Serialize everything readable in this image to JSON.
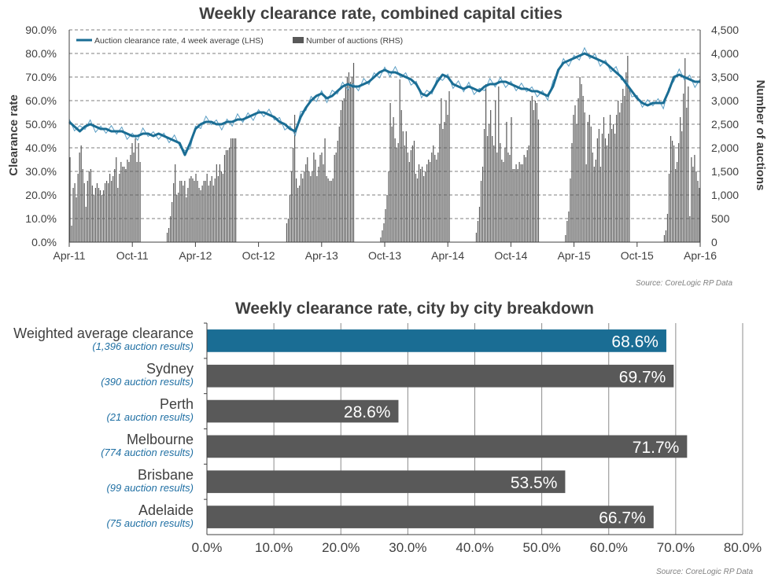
{
  "source_text": "Source: CoreLogic  RP Data",
  "chart_data": [
    {
      "type": "bar+line",
      "title": "Weekly clearance rate, combined capital cities",
      "ylabel": "Clearance rate",
      "ylabel_right": "Number of auctions",
      "x_ticks": [
        "Apr-11",
        "Oct-11",
        "Apr-12",
        "Oct-12",
        "Apr-13",
        "Oct-13",
        "Apr-14",
        "Oct-14",
        "Apr-15",
        "Oct-15",
        "Apr-16"
      ],
      "y_ticks": [
        "0.0%",
        "10.0%",
        "20.0%",
        "30.0%",
        "40.0%",
        "50.0%",
        "60.0%",
        "70.0%",
        "80.0%",
        "90.0%"
      ],
      "y2_ticks": [
        "0",
        "500",
        "1,000",
        "1,500",
        "2,000",
        "2,500",
        "3,000",
        "3,500",
        "4,000",
        "4,500"
      ],
      "ylim": [
        0,
        90
      ],
      "y2lim": [
        0,
        4500
      ],
      "legend": {
        "position": "top-left",
        "line_label": "Auction clearance rate, 4 week average (LHS)",
        "bar_label": "Number of auctions (RHS)"
      },
      "grid": "horizontal dashed",
      "colors": {
        "line": "#1a6d94",
        "line_thin": "#5b9ec4",
        "bars": "#595959"
      },
      "line_points": [
        [
          0,
          51
        ],
        [
          3,
          49
        ],
        [
          6,
          47
        ],
        [
          9,
          49
        ],
        [
          12,
          50
        ],
        [
          15,
          49
        ],
        [
          18,
          48
        ],
        [
          21,
          48
        ],
        [
          24,
          47
        ],
        [
          27,
          47
        ],
        [
          30,
          47
        ],
        [
          33,
          46
        ],
        [
          36,
          45
        ],
        [
          39,
          45
        ],
        [
          42,
          46
        ],
        [
          45,
          46
        ],
        [
          48,
          45
        ],
        [
          51,
          46
        ],
        [
          54,
          45
        ],
        [
          57,
          44
        ],
        [
          60,
          43
        ],
        [
          63,
          42
        ],
        [
          66,
          37
        ],
        [
          69,
          42
        ],
        [
          72,
          48
        ],
        [
          75,
          50
        ],
        [
          78,
          51
        ],
        [
          81,
          51
        ],
        [
          84,
          50
        ],
        [
          87,
          50
        ],
        [
          90,
          51
        ],
        [
          93,
          51
        ],
        [
          96,
          52
        ],
        [
          99,
          52
        ],
        [
          102,
          53
        ],
        [
          105,
          54
        ],
        [
          108,
          55
        ],
        [
          111,
          55
        ],
        [
          114,
          54
        ],
        [
          117,
          53
        ],
        [
          120,
          51
        ],
        [
          123,
          50
        ],
        [
          126,
          48
        ],
        [
          129,
          47
        ],
        [
          132,
          53
        ],
        [
          135,
          57
        ],
        [
          138,
          60
        ],
        [
          141,
          62
        ],
        [
          144,
          63
        ],
        [
          147,
          61
        ],
        [
          150,
          62
        ],
        [
          153,
          64
        ],
        [
          156,
          66
        ],
        [
          159,
          67
        ],
        [
          162,
          66
        ],
        [
          165,
          66
        ],
        [
          168,
          67
        ],
        [
          171,
          68
        ],
        [
          174,
          70
        ],
        [
          177,
          72
        ],
        [
          180,
          73
        ],
        [
          183,
          72
        ],
        [
          186,
          72
        ],
        [
          189,
          71
        ],
        [
          192,
          70
        ],
        [
          195,
          69
        ],
        [
          198,
          67
        ],
        [
          201,
          63
        ],
        [
          204,
          62
        ],
        [
          207,
          64
        ],
        [
          210,
          68
        ],
        [
          213,
          71
        ],
        [
          216,
          70
        ],
        [
          219,
          67
        ],
        [
          222,
          66
        ],
        [
          225,
          65
        ],
        [
          228,
          66
        ],
        [
          231,
          65
        ],
        [
          234,
          64
        ],
        [
          237,
          66
        ],
        [
          240,
          67
        ],
        [
          243,
          67
        ],
        [
          246,
          68
        ],
        [
          249,
          68
        ],
        [
          252,
          67
        ],
        [
          255,
          66
        ],
        [
          258,
          65
        ],
        [
          261,
          65
        ],
        [
          264,
          64
        ],
        [
          267,
          64
        ],
        [
          270,
          63
        ],
        [
          273,
          62
        ],
        [
          276,
          66
        ],
        [
          279,
          73
        ],
        [
          282,
          76
        ],
        [
          285,
          77
        ],
        [
          288,
          78
        ],
        [
          291,
          79
        ],
        [
          294,
          80
        ],
        [
          297,
          79
        ],
        [
          300,
          78
        ],
        [
          303,
          77
        ],
        [
          306,
          76
        ],
        [
          309,
          74
        ],
        [
          312,
          72
        ],
        [
          315,
          70
        ],
        [
          318,
          67
        ],
        [
          321,
          64
        ],
        [
          324,
          61
        ],
        [
          327,
          59
        ],
        [
          330,
          58
        ],
        [
          333,
          59
        ],
        [
          336,
          59
        ],
        [
          339,
          59
        ],
        [
          342,
          64
        ],
        [
          345,
          70
        ],
        [
          348,
          71
        ],
        [
          351,
          70
        ],
        [
          354,
          69
        ],
        [
          357,
          68
        ],
        [
          360,
          68
        ]
      ],
      "bar_values": [
        1800,
        350,
        1150,
        1250,
        950,
        1450,
        1900,
        2050,
        1550,
        1250,
        750,
        1300,
        1500,
        1550,
        1200,
        1000,
        1150,
        1250,
        1150,
        1100,
        1000,
        1100,
        1250,
        1300,
        1250,
        1450,
        1300,
        1400,
        1550,
        1800,
        1150,
        1450,
        1700,
        1600,
        1600,
        1550,
        1750,
        1700,
        1850,
        2100,
        1900,
        2200,
        1700,
        2100,
        1700,
        0,
        0,
        0,
        0,
        0,
        0,
        0,
        0,
        0,
        0,
        0,
        0,
        0,
        0,
        0,
        0,
        200,
        300,
        550,
        850,
        1250,
        1650,
        1000,
        1050,
        1300,
        1300,
        1200,
        1300,
        950,
        1150,
        1350,
        1400,
        1350,
        1300,
        1450,
        1300,
        1150,
        1100,
        1200,
        1300,
        1300,
        1450,
        1200,
        1300,
        1400,
        1200,
        1350,
        1650,
        1400,
        1650,
        1500,
        1450,
        1850,
        1950,
        1950,
        2000,
        2200,
        2200,
        2200,
        2200,
        0,
        0,
        0,
        0,
        0,
        0,
        0,
        0,
        0,
        0,
        0,
        0,
        0,
        0,
        0,
        0,
        0,
        0,
        0,
        0,
        0,
        0,
        0,
        0,
        0,
        0,
        0,
        0,
        0,
        0,
        0,
        400,
        500,
        1000,
        1500,
        2000,
        2700,
        1350,
        1150,
        1200,
        1450,
        1350,
        1500,
        1650,
        1800,
        1500,
        1400,
        1500,
        1900,
        1750,
        1400,
        1600,
        1850,
        1900,
        1650,
        2200,
        1400,
        1350,
        1300,
        1300,
        1350,
        1850,
        1900,
        2150,
        2450,
        2800,
        3000,
        3050,
        3300,
        3500,
        3600,
        3400,
        3500,
        3800,
        0,
        0,
        0,
        0,
        0,
        0,
        0,
        0,
        0,
        0,
        0,
        0,
        0,
        0,
        0,
        0,
        100,
        250,
        400,
        700,
        1000,
        1500,
        2950,
        2450,
        2650,
        2200,
        2000,
        2100,
        3450,
        2800,
        2350,
        2050,
        2350,
        1900,
        1700,
        1950,
        2050,
        2150,
        1450,
        1350,
        1650,
        1550,
        1600,
        1400,
        1500,
        1650,
        1750,
        1700,
        1900,
        2050,
        1850,
        1750,
        1900,
        2500,
        3050,
        2400,
        2550,
        3000,
        2700,
        3200,
        0,
        0,
        0,
        0,
        0,
        0,
        0,
        0,
        0,
        0,
        0,
        0,
        0,
        0,
        0,
        0,
        200,
        450,
        750,
        1300,
        1600,
        2400,
        3350,
        2250,
        2500,
        2800,
        2250,
        2050,
        3000,
        1900,
        3300,
        2100,
        1750,
        1700,
        2000,
        2550,
        1900,
        1850,
        2650,
        1550,
        1550,
        1650,
        1550,
        1700,
        1650,
        1650,
        1850,
        1800,
        1950,
        2050,
        3000,
        3100,
        2800,
        3000,
        2950,
        2600,
        0,
        0,
        0,
        0,
        0,
        0,
        0,
        0,
        0,
        0,
        0,
        0,
        0,
        0,
        0,
        0,
        150,
        450,
        650,
        1350,
        2100,
        2700,
        2900,
        2500,
        3050,
        3500,
        3350,
        3100,
        2750,
        1650,
        2550,
        2700,
        2450,
        1900,
        1600,
        1750,
        2200,
        2400,
        1600,
        2300,
        2650,
        2200,
        2050,
        2300,
        2700,
        2400,
        2500,
        2300,
        2700,
        3000,
        2750,
        2950,
        3250,
        3100,
        3600,
        3950,
        3300,
        0,
        0,
        0,
        0,
        0,
        0,
        0,
        0,
        0,
        0,
        0,
        0,
        0,
        0,
        0,
        0,
        0,
        0,
        0,
        0,
        0,
        150,
        250,
        600,
        1450,
        2250,
        2150,
        2050,
        1550,
        1700,
        2100,
        2650,
        2350,
        3150,
        3900,
        2850,
        3300,
        550,
        1800,
        1600,
        1850,
        1500,
        1300,
        1150
      ]
    },
    {
      "type": "bar",
      "orientation": "horizontal",
      "title": "Weekly clearance rate, city by city breakdown",
      "categories": [
        {
          "name": "Weighted average clearance",
          "sub": "(1,396 auction results)",
          "value": 68.6,
          "label": "68.6%",
          "highlight": true
        },
        {
          "name": "Sydney",
          "sub": "(390 auction results)",
          "value": 69.7,
          "label": "69.7%",
          "highlight": false
        },
        {
          "name": "Perth",
          "sub": "(21 auction results)",
          "value": 28.6,
          "label": "28.6%",
          "highlight": false
        },
        {
          "name": "Melbourne",
          "sub": "(774 auction results)",
          "value": 71.7,
          "label": "71.7%",
          "highlight": false
        },
        {
          "name": "Brisbane",
          "sub": "(99 auction results)",
          "value": 53.5,
          "label": "53.5%",
          "highlight": false
        },
        {
          "name": "Adelaide",
          "sub": "(75 auction results)",
          "value": 66.7,
          "label": "66.7%",
          "highlight": false
        }
      ],
      "x_ticks": [
        "0.0%",
        "10.0%",
        "20.0%",
        "30.0%",
        "40.0%",
        "50.0%",
        "60.0%",
        "70.0%",
        "80.0%"
      ],
      "xlim": [
        0,
        80
      ],
      "grid": "vertical",
      "colors": {
        "highlight": "#1a6d94",
        "bars": "#595959",
        "label": "#ffffff"
      }
    }
  ]
}
